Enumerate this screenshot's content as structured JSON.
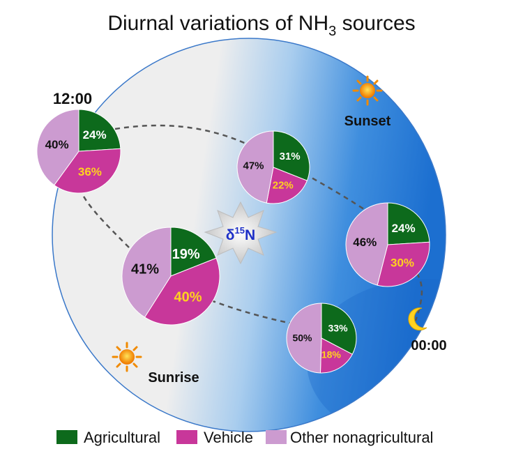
{
  "title": {
    "main": "Diurnal variations of NH",
    "sub": "3",
    "tail": " sources"
  },
  "time_labels": {
    "noon": "12:00",
    "midnight": "00:00",
    "sunset": "Sunset",
    "sunrise": "Sunrise"
  },
  "center_label": {
    "delta": "δ",
    "sup": "15",
    "element": "N"
  },
  "categories": [
    "Agricultural",
    "Vehicle",
    "Other nonagricultural"
  ],
  "colors": {
    "Agricultural": "#0d6a1c",
    "Vehicle": "#c8379a",
    "Other nonagricultural": "#cc9bd0",
    "vehicle_text": "#ffd21f"
  },
  "pies": [
    {
      "id": "noon",
      "values": [
        24,
        36,
        40
      ],
      "labels": [
        "24%",
        "36%",
        "40%"
      ]
    },
    {
      "id": "afternoon",
      "values": [
        31,
        22,
        47
      ],
      "labels": [
        "31%",
        "22%",
        "47%"
      ]
    },
    {
      "id": "evening",
      "values": [
        24,
        30,
        46
      ],
      "labels": [
        "24%",
        "30%",
        "46%"
      ]
    },
    {
      "id": "night",
      "values": [
        33,
        18,
        50
      ],
      "labels": [
        "33%",
        "18%",
        "50%"
      ]
    },
    {
      "id": "morning",
      "values": [
        19,
        40,
        41
      ],
      "labels": [
        "19%",
        "40%",
        "41%"
      ]
    }
  ],
  "legend": [
    {
      "key": "Agricultural",
      "label": "Agricultural"
    },
    {
      "key": "Vehicle",
      "label": "Vehicle"
    },
    {
      "key": "Other nonagricultural",
      "label": "Other nonagricultural"
    }
  ]
}
